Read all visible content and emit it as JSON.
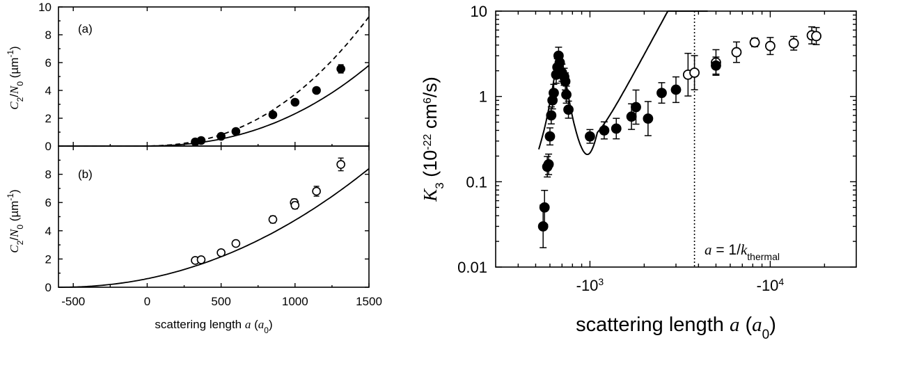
{
  "chart_data": [
    {
      "type": "scatter",
      "panel_label": "(a)",
      "ylabel": {
        "main": "C",
        "sub": "2",
        "slash": "/",
        "main2": "N",
        "sub2": "0",
        "unit_pre": " (µm",
        "unit_sup": "-1",
        "unit_post": ")"
      },
      "xlim": [
        -600,
        1500
      ],
      "ylim": [
        0,
        10
      ],
      "yticks": [
        0,
        2,
        4,
        6,
        8,
        10
      ],
      "xticks": [
        -500,
        0,
        500,
        1000,
        1500
      ],
      "series": [
        {
          "marker": "filled-circle",
          "x": [
            325,
            365,
            500,
            600,
            850,
            1000,
            1145,
            1310
          ],
          "y": [
            0.3,
            0.4,
            0.7,
            1.05,
            2.25,
            3.15,
            4.0,
            5.55
          ],
          "err": [
            0.05,
            0.05,
            0.05,
            0.08,
            0.12,
            0.15,
            0.15,
            0.3
          ]
        }
      ],
      "curves": [
        {
          "style": "solid",
          "x0": 200,
          "x_end": 1500,
          "y_end": 5.8
        },
        {
          "style": "dashed",
          "x0": 200,
          "x_end": 1500,
          "y_end": 9.3
        }
      ]
    },
    {
      "type": "scatter",
      "panel_label": "(b)",
      "ylabel": {
        "main": "C",
        "sub": "2",
        "slash": "/",
        "main2": "N",
        "sub2": "0",
        "unit_pre": " (µm",
        "unit_sup": "-1",
        "unit_post": ")"
      },
      "xlabel": {
        "pre": "scattering length ",
        "var": "a",
        "paren_open": " (",
        "sym": "a",
        "sub": "0",
        "paren_close": ")"
      },
      "xlim": [
        -600,
        1500
      ],
      "ylim": [
        0,
        10
      ],
      "yticks": [
        0,
        2,
        4,
        6,
        8
      ],
      "xticks": [
        -500,
        0,
        500,
        1000,
        1500
      ],
      "xticklabels": [
        "-500",
        "0",
        "500",
        "1000",
        "1500"
      ],
      "series": [
        {
          "marker": "open-circle",
          "x": [
            325,
            365,
            500,
            600,
            850,
            995,
            1000,
            1145,
            1310
          ],
          "y": [
            1.9,
            1.95,
            2.45,
            3.1,
            4.8,
            6.0,
            5.8,
            6.8,
            8.7
          ],
          "err": [
            0.12,
            0.12,
            0.15,
            0.18,
            0.25,
            0.25,
            0.25,
            0.35,
            0.45
          ]
        }
      ],
      "curves": [
        {
          "style": "solid",
          "x0": -600,
          "x_end": 1500,
          "y_end": 8.4
        }
      ]
    },
    {
      "type": "scatter",
      "ylabel": {
        "main": "K",
        "sub": "3",
        "unit_pre": " (10",
        "unit_sup": "-22",
        "unit_mid": " cm",
        "unit_sup2": "6",
        "unit_post": "/s)"
      },
      "xlabel": {
        "pre": "scattering length ",
        "var": "a",
        "paren_open": " (",
        "sym": "a",
        "sub": "0",
        "paren_close": ")"
      },
      "xscale": "log (negative a)",
      "xlim": [
        -300,
        -30000
      ],
      "ylim": [
        0.01,
        10
      ],
      "yscale": "log",
      "yticks": [
        0.01,
        0.1,
        1,
        10
      ],
      "yticklabels": [
        "0.01",
        "0.1",
        "1",
        "10"
      ],
      "xticks": [
        -1000,
        -10000
      ],
      "xticklabels": [
        {
          "base": "-10",
          "exp": "3"
        },
        {
          "base": "-10",
          "exp": "4"
        }
      ],
      "annotation": {
        "pre": "a",
        "mid": " = 1/",
        "k": "k",
        "sub": "thermal"
      },
      "vline_x": -3800,
      "series": [
        {
          "marker": "filled-circle",
          "x": [
            -550,
            -560,
            -580,
            -590,
            -600,
            -610,
            -620,
            -630,
            -650,
            -660,
            -670,
            -680,
            -700,
            -720,
            -730,
            -740,
            -760,
            -1000,
            -1200,
            -1400,
            -1700,
            -1800,
            -2100,
            -2500,
            -3000
          ],
          "y": [
            0.03,
            0.05,
            0.15,
            0.16,
            0.34,
            0.6,
            0.9,
            1.1,
            1.8,
            2.2,
            3.0,
            2.5,
            1.9,
            1.7,
            1.5,
            1.05,
            0.7,
            0.34,
            0.4,
            0.42,
            0.58,
            0.75,
            0.55,
            1.1,
            1.2
          ],
          "err": [
            0.25,
            0.2,
            0.12,
            0.12,
            0.1,
            0.1,
            0.1,
            0.1,
            0.1,
            0.1,
            0.1,
            0.1,
            0.1,
            0.1,
            0.1,
            0.1,
            0.1,
            0.08,
            0.1,
            0.12,
            0.15,
            0.2,
            0.2,
            0.12,
            0.15
          ]
        },
        {
          "marker": "open-circle",
          "x": [
            -3500,
            -3800,
            -5000,
            -6500,
            -8200,
            -10000,
            -13500,
            -17000,
            -18000
          ],
          "y": [
            1.8,
            1.9,
            2.5,
            3.3,
            4.3,
            3.9,
            4.2,
            5.2,
            5.1
          ],
          "err": [
            0.25,
            0.2,
            0.15,
            0.12,
            0.05,
            0.1,
            0.08,
            0.1,
            0.1
          ]
        },
        {
          "marker": "filled-circle",
          "x": [
            -5000
          ],
          "y": [
            2.3
          ],
          "err": [
            0.1
          ]
        }
      ]
    }
  ]
}
